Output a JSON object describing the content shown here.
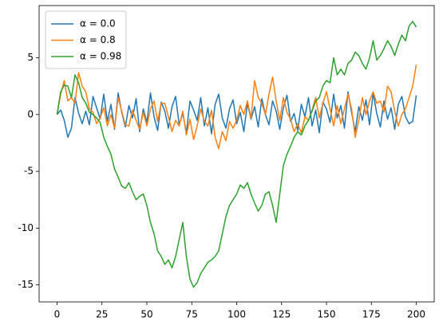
{
  "chart_data": {
    "type": "line",
    "x": [
      0,
      2,
      4,
      6,
      8,
      10,
      12,
      14,
      16,
      18,
      20,
      22,
      24,
      26,
      28,
      30,
      32,
      34,
      36,
      38,
      40,
      42,
      44,
      46,
      48,
      50,
      52,
      54,
      56,
      58,
      60,
      62,
      64,
      66,
      68,
      70,
      72,
      74,
      76,
      78,
      80,
      82,
      84,
      86,
      88,
      90,
      92,
      94,
      96,
      98,
      100,
      102,
      104,
      106,
      108,
      110,
      112,
      114,
      116,
      118,
      120,
      122,
      124,
      126,
      128,
      130,
      132,
      134,
      136,
      138,
      140,
      142,
      144,
      146,
      148,
      150,
      152,
      154,
      156,
      158,
      160,
      162,
      164,
      166,
      168,
      170,
      172,
      174,
      176,
      178,
      180,
      182,
      184,
      186,
      188,
      190,
      192,
      194,
      196,
      198,
      200
    ],
    "series": [
      {
        "name": "α = 0.0",
        "color": "#1f77b4",
        "values": [
          0,
          0.4,
          -0.5,
          -2,
          -1.2,
          1.5,
          0.1,
          -0.8,
          0.3,
          -0.9,
          1.6,
          0.6,
          -0.4,
          1.8,
          -0.6,
          0.9,
          -1.3,
          1.9,
          0.2,
          -1.1,
          0.8,
          -0.3,
          1.4,
          -1.5,
          0.5,
          -0.7,
          1.9,
          -0.2,
          -1.4,
          1.1,
          0.3,
          -1.2,
          0.7,
          1.6,
          -0.9,
          0.1,
          -1.6,
          1.2,
          0.4,
          -0.5,
          1.5,
          -1.0,
          0.6,
          -1.7,
          0.9,
          1.8,
          -0.3,
          -1.2,
          0.5,
          1.3,
          -0.8,
          0.2,
          -1.5,
          1.0,
          -0.4,
          0.7,
          -1.1,
          1.4,
          0.0,
          -0.9,
          1.2,
          0.3,
          -1.3,
          0.6,
          1.7,
          -0.6,
          0.1,
          -1.4,
          0.9,
          -0.2,
          1.5,
          -1.0,
          0.4,
          -1.6,
          1.1,
          0.5,
          -0.7,
          1.8,
          -0.3,
          0.8,
          -1.2,
          2.0,
          0.2,
          -1.5,
          0.7,
          -0.5,
          1.3,
          -0.9,
          1.9,
          0.1,
          -1.1,
          1.2,
          -0.4,
          0.6,
          -1.3,
          0.9,
          1.6,
          -0.2,
          -0.8,
          -0.6,
          1.7
        ]
      },
      {
        "name": "α = 0.8",
        "color": "#ff7f0e",
        "values": [
          0,
          1.8,
          3.0,
          1.2,
          1.5,
          1.0,
          3.7,
          2.5,
          2.0,
          0.5,
          0.2,
          -0.8,
          -0.3,
          0.6,
          -1.0,
          0.0,
          -1.2,
          1.5,
          0.3,
          -0.9,
          -1.0,
          0.4,
          -0.5,
          -1.3,
          0.2,
          -1.0,
          0.5,
          1.2,
          -0.6,
          1.0,
          1.0,
          -0.2,
          -1.5,
          -0.5,
          -1.0,
          0.3,
          -1.8,
          -0.4,
          -2.2,
          -1.0,
          0.5,
          -0.6,
          -1.0,
          0.4,
          -2.0,
          -3.0,
          -1.5,
          -2.3,
          -0.6,
          -1.2,
          -0.5,
          0.8,
          0.0,
          1.2,
          -0.3,
          3.0,
          1.5,
          1.0,
          0.0,
          1.8,
          3.3,
          1.2,
          -0.5,
          1.5,
          0.2,
          -0.4,
          -1.5,
          -0.8,
          -1.6,
          -0.2,
          -0.5,
          0.4,
          1.5,
          -0.3,
          1.0,
          2.0,
          0.5,
          -1.0,
          0.8,
          -0.8,
          0.5,
          1.8,
          0.5,
          -2.0,
          -0.5,
          1.5,
          0.0,
          1.2,
          2.0,
          1.0,
          1.2,
          0.2,
          2.5,
          2.0,
          0.3,
          -1.0,
          0.0,
          0.5,
          1.5,
          2.5,
          4.4
        ]
      },
      {
        "name": "α = 0.98",
        "color": "#2ca02c",
        "values": [
          0,
          2.0,
          2.6,
          2.5,
          1.5,
          3.5,
          2.8,
          1.5,
          1.0,
          0.2,
          0.0,
          -0.3,
          -0.7,
          -2.0,
          -2.8,
          -3.5,
          -4.8,
          -5.5,
          -6.3,
          -6.5,
          -6.0,
          -6.8,
          -7.5,
          -7.2,
          -7.0,
          -8.0,
          -9.5,
          -10.5,
          -12.0,
          -12.5,
          -13.2,
          -12.8,
          -13.5,
          -12.5,
          -11.0,
          -9.5,
          -12.5,
          -14.5,
          -15.2,
          -14.8,
          -14.0,
          -13.5,
          -13.0,
          -12.8,
          -12.5,
          -12.0,
          -10.5,
          -9.0,
          -8.0,
          -7.5,
          -7.0,
          -6.2,
          -6.5,
          -6.0,
          -7.0,
          -7.8,
          -8.5,
          -8.0,
          -7.0,
          -6.8,
          -8.0,
          -9.5,
          -7.0,
          -4.5,
          -3.5,
          -2.8,
          -2.0,
          -1.5,
          -1.8,
          -1.0,
          -0.5,
          0.3,
          1.2,
          1.5,
          2.5,
          3.0,
          2.8,
          5.0,
          3.5,
          4.0,
          3.5,
          4.5,
          4.8,
          5.5,
          5.2,
          4.5,
          4.0,
          5.0,
          6.5,
          4.8,
          5.2,
          5.8,
          6.5,
          6.0,
          5.2,
          6.2,
          7.0,
          6.5,
          7.8,
          8.2,
          7.7
        ]
      }
    ],
    "xlim": [
      -10,
      210
    ],
    "ylim": [
      -16.5,
      9.6
    ],
    "xticks": [
      0,
      25,
      50,
      75,
      100,
      125,
      150,
      175,
      200
    ],
    "yticks": [
      -15,
      -10,
      -5,
      0,
      5
    ],
    "grid": false,
    "legend": "upper-left"
  }
}
